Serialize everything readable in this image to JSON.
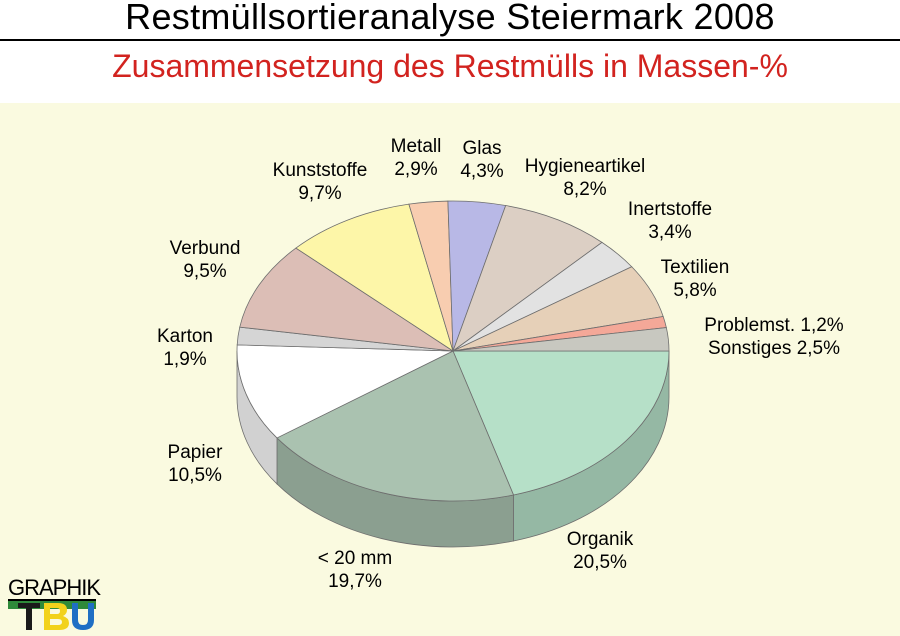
{
  "header": {
    "title": "Restmüllsortieranalyse Steiermark 2008",
    "subtitle": "Zusammensetzung des Restmülls in Massen-%"
  },
  "logo": {
    "top": "GRAPHIK",
    "bottom": "TBU"
  },
  "colors": {
    "background": "#fafae0",
    "title_rule": "#000000",
    "subtitle": "#d2231f"
  },
  "chart_data": {
    "type": "pie",
    "style": "3d",
    "title": "Zusammensetzung des Restmülls in Massen-%",
    "unit": "Massen-%",
    "slices": [
      {
        "name": "Organik",
        "value": 20.5,
        "label": "20,5%",
        "color": "#b6e0c8"
      },
      {
        "name": "< 20 mm",
        "value": 19.7,
        "label": "19,7%",
        "color": "#aac2b0"
      },
      {
        "name": "Papier",
        "value": 10.5,
        "label": "10,5%",
        "color": "#ffffff"
      },
      {
        "name": "Karton",
        "value": 1.9,
        "label": "1,9%",
        "color": "#d5d5d5"
      },
      {
        "name": "Verbund",
        "value": 9.5,
        "label": "9,5%",
        "color": "#dcbeb6"
      },
      {
        "name": "Kunststoffe",
        "value": 9.7,
        "label": "9,7%",
        "color": "#fdf6a8"
      },
      {
        "name": "Metall",
        "value": 2.9,
        "label": "2,9%",
        "color": "#f8cdb0"
      },
      {
        "name": "Glas",
        "value": 4.3,
        "label": "4,3%",
        "color": "#b8b8e6"
      },
      {
        "name": "Hygieneartikel",
        "value": 8.2,
        "label": "8,2%",
        "color": "#dccfc4"
      },
      {
        "name": "Inertstoffe",
        "value": 3.4,
        "label": "3,4%",
        "color": "#e2e2e2"
      },
      {
        "name": "Textilien",
        "value": 5.8,
        "label": "5,8%",
        "color": "#e6d0b8"
      },
      {
        "name": "Problemst.",
        "value": 1.2,
        "label": "1,2%",
        "color": "#f4a898"
      },
      {
        "name": "Sonstiges",
        "value": 2.5,
        "label": "2,5%",
        "color": "#c8c8c0"
      }
    ]
  }
}
